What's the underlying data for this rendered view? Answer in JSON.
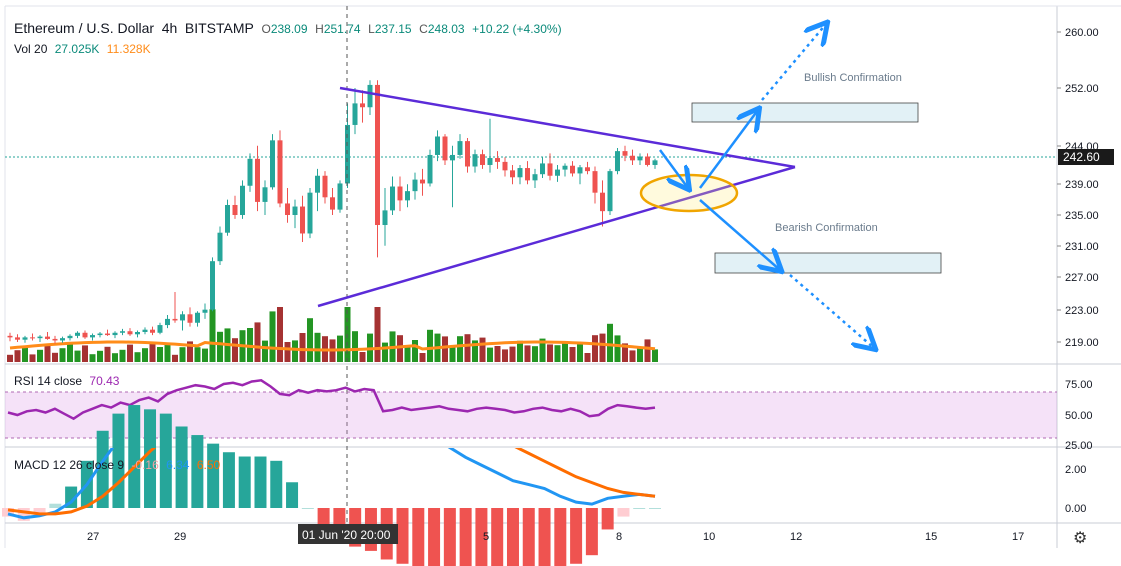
{
  "header": {
    "symbol": "Ethereum / U.S. Dollar",
    "interval": "4h",
    "exchange": "BITSTAMP",
    "o_label": "O",
    "o": "238.09",
    "h_label": "H",
    "h": "251.74",
    "l_label": "L",
    "l": "237.15",
    "c_label": "C",
    "c": "248.03",
    "change": "+10.22 (+4.30%)"
  },
  "volume": {
    "label": "Vol 20",
    "v1": "27.025K",
    "v2": "11.328K"
  },
  "rsi": {
    "label": "RSI 14 close",
    "value": "70.43",
    "ticks": [
      "75.00",
      "50.00",
      "25.00"
    ]
  },
  "macd": {
    "label": "MACD 12 26 close 9",
    "hist": "-0.16",
    "macd": "6.34",
    "signal": "6.50",
    "ticks": [
      "2.00",
      "0.00"
    ]
  },
  "price_ticks": [
    "260.00",
    "252.00",
    "244.00",
    "239.00",
    "235.00",
    "231.00",
    "227.00",
    "223.00",
    "219.00"
  ],
  "current_price": "242.60",
  "x_ticks": [
    "27",
    "29",
    "5",
    "8",
    "10",
    "12",
    "15",
    "17"
  ],
  "crosshair_label": "01 Jun '20  20:00",
  "annotations": {
    "bullish": "Bullish Confirmation",
    "bearish": "Bearish Confirmation"
  },
  "colors": {
    "up": "#26a69a",
    "down": "#ef5350",
    "volUp": "#0b8a0b",
    "volDown": "#9b1c1c",
    "trend": "#5b2bd8",
    "arrow": "#1e90ff",
    "ellipse": "#f0a500",
    "rsi": "#9c27b0",
    "macd": "#2196f3",
    "signal": "#ff6d00"
  },
  "chart_data": {
    "type": "candlestick",
    "title": "Ethereum / U.S. Dollar 4h BITSTAMP",
    "ylim": [
      217,
      262
    ],
    "candles": [
      [
        219.8,
        220.2,
        219.1,
        219.6
      ],
      [
        219.6,
        220.0,
        219.0,
        219.3
      ],
      [
        219.3,
        219.8,
        218.9,
        219.6
      ],
      [
        219.6,
        220.1,
        219.2,
        219.5
      ],
      [
        219.5,
        219.9,
        219.0,
        219.7
      ],
      [
        219.7,
        220.3,
        219.3,
        219.4
      ],
      [
        219.4,
        219.8,
        218.8,
        219.2
      ],
      [
        219.2,
        219.7,
        218.9,
        219.5
      ],
      [
        219.5,
        220.0,
        219.2,
        219.8
      ],
      [
        219.8,
        220.4,
        219.5,
        220.2
      ],
      [
        220.2,
        220.5,
        219.4,
        219.6
      ],
      [
        219.6,
        220.1,
        219.2,
        219.9
      ],
      [
        219.9,
        220.3,
        219.6,
        220.1
      ],
      [
        220.1,
        220.6,
        219.8,
        219.9
      ],
      [
        219.9,
        220.4,
        219.5,
        220.2
      ],
      [
        220.2,
        220.7,
        219.9,
        220.4
      ],
      [
        220.4,
        220.8,
        219.8,
        220.0
      ],
      [
        220.0,
        220.5,
        219.6,
        220.3
      ],
      [
        220.3,
        220.9,
        220.0,
        220.6
      ],
      [
        220.6,
        221.0,
        219.9,
        220.2
      ],
      [
        220.2,
        221.5,
        220.0,
        221.2
      ],
      [
        221.2,
        222.5,
        220.8,
        222.0
      ],
      [
        222.0,
        225.5,
        221.5,
        221.8
      ],
      [
        221.8,
        223.0,
        220.5,
        222.6
      ],
      [
        222.6,
        223.5,
        221.0,
        221.5
      ],
      [
        221.5,
        223.0,
        221.0,
        222.8
      ],
      [
        222.8,
        224.0,
        222.0,
        223.2
      ],
      [
        223.2,
        230.0,
        223.0,
        229.5
      ],
      [
        229.5,
        234.0,
        229.0,
        233.2
      ],
      [
        233.2,
        237.5,
        232.8,
        236.8
      ],
      [
        236.8,
        238.0,
        235.0,
        235.5
      ],
      [
        235.5,
        240.0,
        235.0,
        239.3
      ],
      [
        239.3,
        243.5,
        238.5,
        242.8
      ],
      [
        242.8,
        244.5,
        236.0,
        237.2
      ],
      [
        237.2,
        240.0,
        235.5,
        239.1
      ],
      [
        239.1,
        246.0,
        238.8,
        245.2
      ],
      [
        245.2,
        246.5,
        236.5,
        237.0
      ],
      [
        237.0,
        239.0,
        234.5,
        235.5
      ],
      [
        235.5,
        237.5,
        233.8,
        236.6
      ],
      [
        236.6,
        238.0,
        232.0,
        233.1
      ],
      [
        233.1,
        239.0,
        232.5,
        238.4
      ],
      [
        238.4,
        241.5,
        236.0,
        240.6
      ],
      [
        240.6,
        241.2,
        237.0,
        237.8
      ],
      [
        237.8,
        239.0,
        235.5,
        236.2
      ],
      [
        236.2,
        240.0,
        235.8,
        239.6
      ],
      [
        239.6,
        250.0,
        239.0,
        247.2
      ],
      [
        247.2,
        252.0,
        246.0,
        250.0
      ],
      [
        250.0,
        251.7,
        247.5,
        249.5
      ],
      [
        249.5,
        253.0,
        248.5,
        252.4
      ],
      [
        252.4,
        253.0,
        230.0,
        234.2
      ],
      [
        234.2,
        239.0,
        231.5,
        236.1
      ],
      [
        236.1,
        240.5,
        235.5,
        239.2
      ],
      [
        239.2,
        240.5,
        236.0,
        237.4
      ],
      [
        237.4,
        239.5,
        236.5,
        238.6
      ],
      [
        238.6,
        241.0,
        237.5,
        240.1
      ],
      [
        240.1,
        241.5,
        238.0,
        239.6
      ],
      [
        239.6,
        244.0,
        239.2,
        243.3
      ],
      [
        243.3,
        246.5,
        242.5,
        245.7
      ],
      [
        245.7,
        246.0,
        242.0,
        242.6
      ],
      [
        242.6,
        244.5,
        236.5,
        243.3
      ],
      [
        243.3,
        246.0,
        242.8,
        245.1
      ],
      [
        245.1,
        245.5,
        241.0,
        241.8
      ],
      [
        241.8,
        244.0,
        241.0,
        243.4
      ],
      [
        243.4,
        244.0,
        241.5,
        242.0
      ],
      [
        242.0,
        248.0,
        241.0,
        242.9
      ],
      [
        242.9,
        243.8,
        241.5,
        242.4
      ],
      [
        242.4,
        243.0,
        240.5,
        241.3
      ],
      [
        241.3,
        242.0,
        239.5,
        240.4
      ],
      [
        240.4,
        242.0,
        239.5,
        241.6
      ],
      [
        241.6,
        242.5,
        239.5,
        240.0
      ],
      [
        240.0,
        241.5,
        239.0,
        240.8
      ],
      [
        240.8,
        243.0,
        240.3,
        242.2
      ],
      [
        242.2,
        243.5,
        240.0,
        240.6
      ],
      [
        240.6,
        242.0,
        239.8,
        241.4
      ],
      [
        241.4,
        242.2,
        240.5,
        241.9
      ],
      [
        241.9,
        242.5,
        240.5,
        240.9
      ],
      [
        240.9,
        242.0,
        239.5,
        241.7
      ],
      [
        241.7,
        242.4,
        240.8,
        241.2
      ],
      [
        241.2,
        241.8,
        237.0,
        238.4
      ],
      [
        238.4,
        240.0,
        234.0,
        236.0
      ],
      [
        236.0,
        241.5,
        235.5,
        241.2
      ],
      [
        241.2,
        244.2,
        240.8,
        243.8
      ],
      [
        243.8,
        244.5,
        242.5,
        243.2
      ],
      [
        243.2,
        244.0,
        242.0,
        242.6
      ],
      [
        242.6,
        243.5,
        242.0,
        243.1
      ],
      [
        243.1,
        243.5,
        241.8,
        242.0
      ],
      [
        242.0,
        242.8,
        241.5,
        242.6
      ]
    ],
    "volume_color_pattern": "matches candle direction",
    "rsi_values": [
      52,
      50,
      53,
      54,
      52,
      55,
      51,
      47,
      52,
      55,
      58,
      56,
      60,
      58,
      62,
      64,
      61,
      67,
      70,
      72,
      74,
      73,
      71,
      75,
      76,
      74,
      77,
      78,
      73,
      67,
      66,
      70,
      68,
      70,
      69,
      70,
      72,
      69,
      71,
      70,
      53,
      54,
      56,
      54,
      55,
      56,
      57,
      55,
      54,
      53,
      55,
      56,
      55,
      54,
      52,
      53,
      55,
      56,
      54,
      53,
      55,
      53,
      49,
      50,
      55,
      58,
      57,
      56,
      55,
      56
    ],
    "macd_values": [
      -0.3,
      -0.5,
      -0.4,
      -0.2,
      0.3,
      1.2,
      2.4,
      3.5,
      4.5,
      5.2,
      5.8,
      6.2,
      6.5,
      6.8,
      7.0,
      7.3,
      7.6,
      7.8,
      7.5,
      7.0,
      6.6,
      6.2,
      5.8,
      5.5,
      5.0,
      4.6,
      4.1,
      3.6,
      3.1,
      2.6,
      2.2,
      1.8,
      1.4,
      1.2,
      1.0,
      0.6,
      0.3,
      0.2,
      0.5,
      0.6,
      0.7,
      0.6
    ],
    "signal_values": [
      -0.1,
      -0.2,
      -0.3,
      -0.3,
      -0.2,
      0.1,
      0.6,
      1.3,
      2.1,
      2.9,
      3.6,
      4.3,
      4.8,
      5.3,
      5.7,
      6.1,
      6.4,
      6.7,
      6.9,
      7.0,
      7.0,
      6.9,
      6.7,
      6.5,
      6.2,
      5.9,
      5.6,
      5.2,
      4.8,
      4.4,
      4.0,
      3.6,
      3.2,
      2.8,
      2.4,
      2.0,
      1.6,
      1.3,
      1.0,
      0.8,
      0.7,
      0.6
    ]
  }
}
